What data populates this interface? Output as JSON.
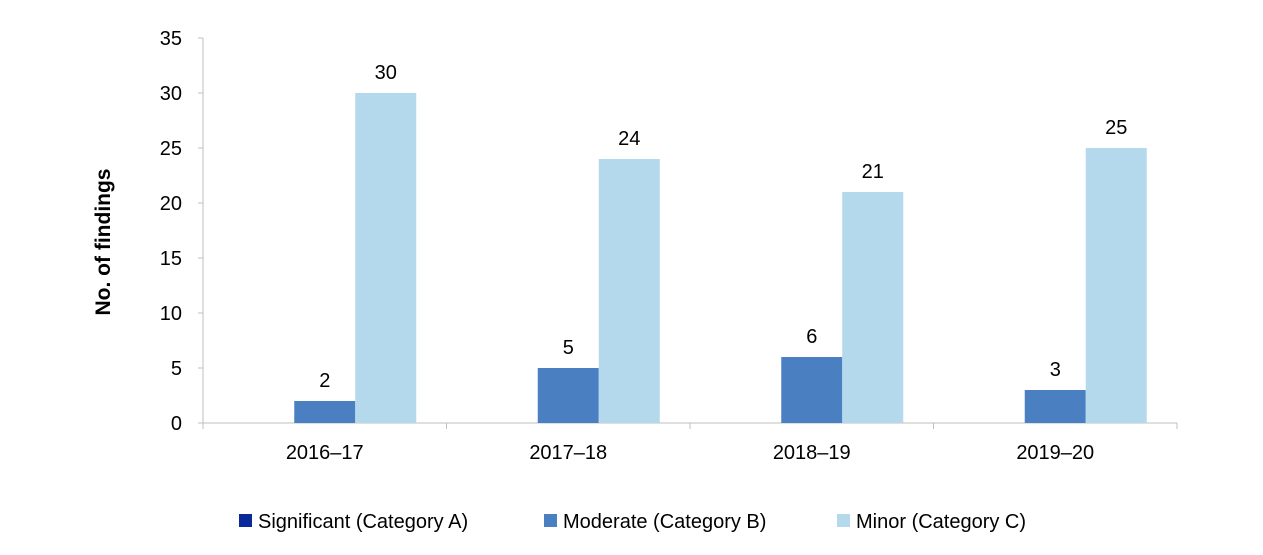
{
  "chart_data": {
    "type": "bar",
    "title": "",
    "xlabel": "",
    "ylabel": "No. of findings",
    "ylim": [
      0,
      35
    ],
    "ytick_step": 5,
    "yticks": [
      "0",
      "5",
      "10",
      "15",
      "20",
      "25",
      "30",
      "35"
    ],
    "grid": false,
    "legend_position": "bottom",
    "categories": [
      "2016–17",
      "2017–18",
      "2018–19",
      "2019–20"
    ],
    "series": [
      {
        "name": "Significant (Category A)",
        "color": "#0b2a99",
        "values": [
          0,
          0,
          0,
          0
        ],
        "labels": [
          "",
          "",
          "",
          ""
        ]
      },
      {
        "name": "Moderate (Category B)",
        "color": "#4a7fc1",
        "values": [
          2,
          5,
          6,
          3
        ],
        "labels": [
          "2",
          "5",
          "6",
          "3"
        ]
      },
      {
        "name": "Minor (Category C)",
        "color": "#b4d8ec",
        "values": [
          30,
          24,
          21,
          25
        ],
        "labels": [
          "30",
          "24",
          "21",
          "25"
        ]
      }
    ]
  }
}
